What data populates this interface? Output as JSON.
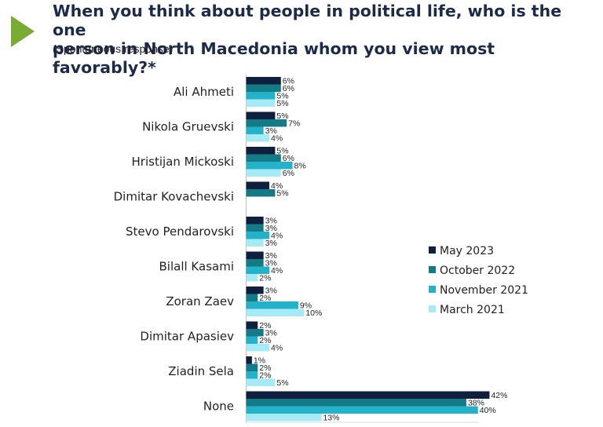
{
  "slide": {
    "title_line1": "When you think about people in political life, who is the one",
    "title_line2": "person in North Macedonia whom you view most favorably?*",
    "subtitle": "(Spontaneous response)"
  },
  "chart_data": {
    "type": "bar",
    "orientation": "horizontal",
    "categories": [
      "Ali Ahmeti",
      "Nikola Gruevski",
      "Hristijan Mickoski",
      "Dimitar Kovachevski",
      "Stevo Pendarovski",
      "Bilall Kasami",
      "Zoran Zaev",
      "Dimitar Apasiev",
      "Ziadin Sela",
      "None"
    ],
    "series": [
      {
        "name": "May 2023",
        "color": "#0f1f3d",
        "values": [
          6,
          5,
          5,
          4,
          3,
          3,
          3,
          2,
          1,
          42
        ]
      },
      {
        "name": "October 2022",
        "color": "#137a86",
        "values": [
          6,
          7,
          6,
          5,
          3,
          3,
          2,
          3,
          2,
          38
        ]
      },
      {
        "name": "November 2021",
        "color": "#23b2ca",
        "values": [
          5,
          3,
          8,
          null,
          4,
          4,
          9,
          2,
          2,
          40
        ]
      },
      {
        "name": "March 2021",
        "color": "#a6eaf6",
        "values": [
          5,
          4,
          6,
          null,
          3,
          2,
          10,
          4,
          5,
          13
        ]
      }
    ],
    "value_suffix": "%",
    "xlim": [
      0,
      42
    ],
    "legend_position": "right",
    "grid": false
  }
}
